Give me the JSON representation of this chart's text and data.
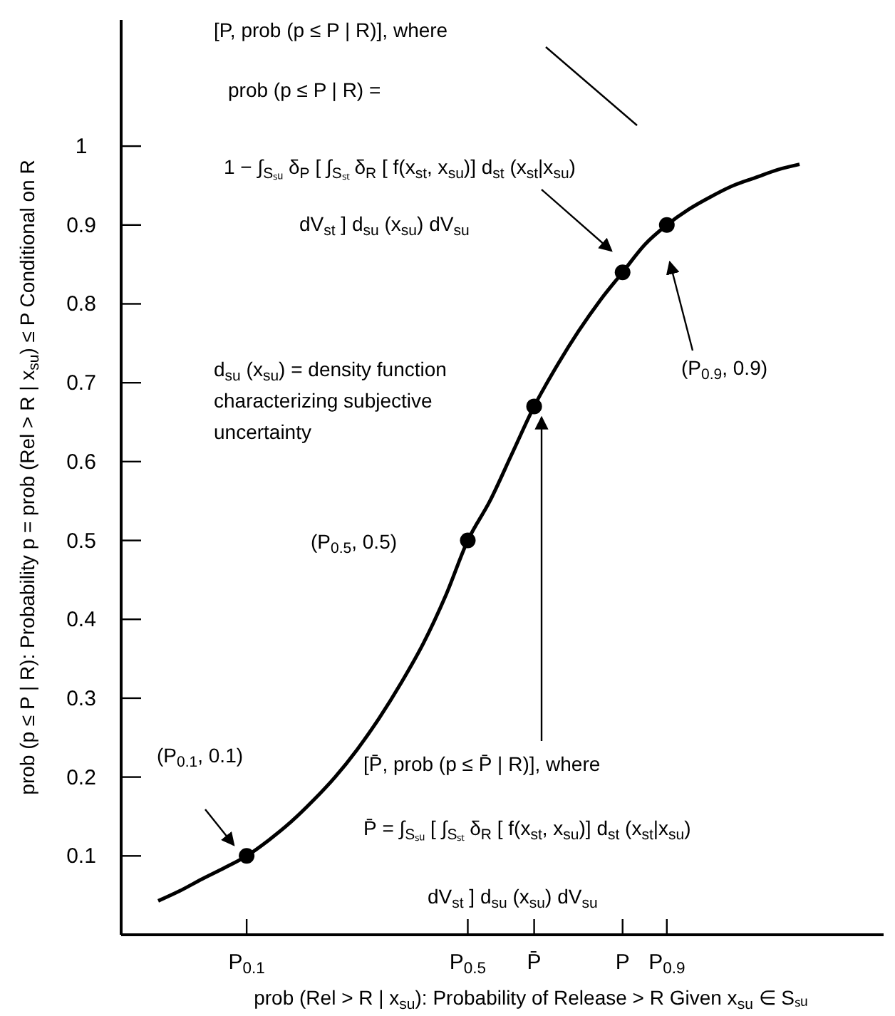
{
  "chart_data": {
    "type": "line",
    "xlabel": "prob (Rel > R | x$_{su}$): Probability of Release > R Given x$_{su}$ ∈ Sₛᵤ",
    "ylabel": "prob (p ≤ P | R): Probability p = prob (Rel > R | x$_{su}$) ≤ P Conditional on R",
    "categories": [
      null,
      null,
      null,
      null,
      "P$_{0.1}$",
      null,
      null,
      null,
      null,
      null,
      null,
      null,
      null,
      null,
      "P$_{0.5}$",
      null,
      null,
      "P̄",
      null,
      null,
      null,
      "P",
      null,
      "P$_{0.9}$",
      null,
      null,
      null,
      null,
      null,
      null
    ],
    "ylim": [
      0,
      1.16
    ],
    "yticks": [
      0.1,
      0.2,
      0.3,
      0.4,
      0.5,
      0.6,
      0.7,
      0.8,
      0.9,
      1
    ],
    "series": [
      {
        "color": "#000000",
        "values": [
          0.043,
          0.056,
          0.071,
          0.085,
          0.1,
          0.12,
          0.143,
          0.17,
          0.2,
          0.235,
          0.275,
          0.32,
          0.37,
          0.43,
          0.5,
          0.55,
          0.61,
          0.67,
          0.72,
          0.765,
          0.805,
          0.84,
          0.875,
          0.9,
          0.92,
          0.936,
          0.95,
          0.96,
          0.97,
          0.977
        ]
      },
      {
        "type": "scatter",
        "color": "#000000",
        "marker": "circle",
        "x": [
          "P$_{0.1}$",
          "P$_{0.5}$",
          "P̄",
          "P",
          "P$_{0.9}$"
        ],
        "values": [
          0.1,
          0.5,
          0.67,
          0.84,
          0.9
        ]
      }
    ],
    "annotations": [
      "[P, prob (p ≤ P | R)], where",
      "prob (p ≤ P | R) =",
      "1 − ∫$_{Sₛᵤ}$ δ$_{P}$ [ ∫$_{Sₛₜ}$ δ$_{R}$ [ f(x$_{st}$, x$_{su}$)] d$_{st}$ (x$_{st}$|x$_{su}$)",
      "dV$_{st}$ ] d$_{su}$ (x$_{su}$) dV$_{su}$",
      "d$_{su}$ (x$_{su}$) = density function",
      "characterizing subjective",
      "uncertainty",
      "(P$_{0.5}$, 0.5)",
      "(P$_{0.1}$, 0.1)",
      "(P$_{0.9}$, 0.9)",
      "[P̄, prob (p ≤ P̄ | R)], where",
      "P̄ = ∫$_{Sₛᵤ}$ [ ∫$_{Sₛₜ}$ δ$_{R}$ [ f(x$_{st}$, x$_{su}$)] d$_{st}$ (x$_{st}$|x$_{su}$)",
      "dV$_{st}$ ] d$_{su}$ (x$_{su}$) dV$_{su}$"
    ],
    "grid": false,
    "legend": false
  }
}
